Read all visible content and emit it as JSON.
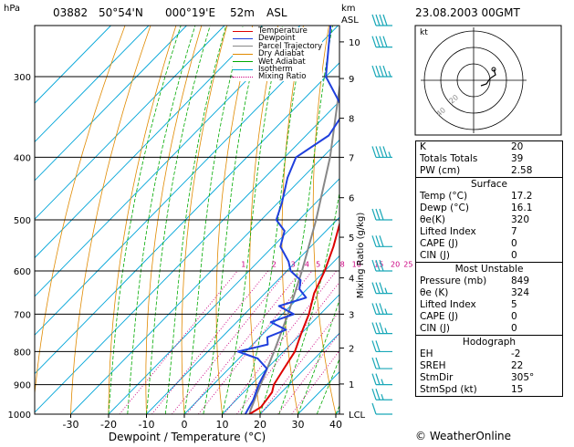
{
  "header": {
    "hpa": "hPa",
    "station": "03882",
    "lat": "50°54'N",
    "lon": "000°19'E",
    "elev": "52m",
    "asl": "ASL",
    "km": "km",
    "asl2": "ASL",
    "datetime": "23.08.2003 00GMT"
  },
  "legend": {
    "items": [
      {
        "label": "Temperature",
        "color": "#dd0000",
        "style": "solid"
      },
      {
        "label": "Dewpoint",
        "color": "#1f3fdd",
        "style": "solid"
      },
      {
        "label": "Parcel Trajectory",
        "color": "#888888",
        "style": "solid"
      },
      {
        "label": "Dry Adiabat",
        "color": "#e08a00",
        "style": "solid"
      },
      {
        "label": "Wet Adiabat",
        "color": "#00aa00",
        "style": "solid"
      },
      {
        "label": "Isotherm",
        "color": "#00a5d8",
        "style": "solid"
      },
      {
        "label": "Mixing Ratio",
        "color": "#cc0080",
        "style": "dotted"
      }
    ]
  },
  "chart_data": {
    "type": "skew-t",
    "xlabel": "Dewpoint / Temperature (°C)",
    "ylabel_left": "hPa",
    "ylabel_right": "Mixing Ratio (g/kg)",
    "x_ticks": [
      -30,
      -20,
      -10,
      0,
      10,
      20,
      30,
      40
    ],
    "pressure_ticks": [
      300,
      400,
      500,
      600,
      700,
      800,
      900,
      1000
    ],
    "km_ticks": [
      "10",
      "9",
      "8",
      "7",
      "6",
      "5",
      "4",
      "3",
      "2",
      "1",
      "LCL"
    ],
    "mixing_ratio_labels": [
      "1",
      "2",
      "3",
      "4",
      "5",
      "8",
      "10",
      "15",
      "20",
      "25"
    ],
    "temperature": [
      {
        "p": 1000,
        "t": 17.2
      },
      {
        "p": 975,
        "t": 18.4
      },
      {
        "p": 950,
        "t": 18.0
      },
      {
        "p": 925,
        "t": 17.5
      },
      {
        "p": 900,
        "t": 16.0
      },
      {
        "p": 850,
        "t": 14.5
      },
      {
        "p": 800,
        "t": 13.0
      },
      {
        "p": 750,
        "t": 10.0
      },
      {
        "p": 700,
        "t": 7.0
      },
      {
        "p": 650,
        "t": 3.0
      },
      {
        "p": 600,
        "t": 0.0
      },
      {
        "p": 550,
        "t": -4.0
      },
      {
        "p": 500,
        "t": -9.0
      },
      {
        "p": 450,
        "t": -14.0
      },
      {
        "p": 400,
        "t": -20.5
      },
      {
        "p": 350,
        "t": -28.0
      },
      {
        "p": 300,
        "t": -37.0
      },
      {
        "p": 250,
        "t": -48.0
      }
    ],
    "dewpoint": [
      {
        "p": 1000,
        "t": 16.1
      },
      {
        "p": 950,
        "t": 14.5
      },
      {
        "p": 900,
        "t": 12.0
      },
      {
        "p": 850,
        "t": 10.0
      },
      {
        "p": 820,
        "t": 5.0
      },
      {
        "p": 800,
        "t": -2.0
      },
      {
        "p": 780,
        "t": 4.0
      },
      {
        "p": 760,
        "t": 2.0
      },
      {
        "p": 740,
        "t": 5.0
      },
      {
        "p": 720,
        "t": -1.0
      },
      {
        "p": 700,
        "t": 3.0
      },
      {
        "p": 680,
        "t": -3.0
      },
      {
        "p": 660,
        "t": 2.0
      },
      {
        "p": 640,
        "t": -2.0
      },
      {
        "p": 620,
        "t": -4.0
      },
      {
        "p": 600,
        "t": -9.0
      },
      {
        "p": 580,
        "t": -12.0
      },
      {
        "p": 550,
        "t": -18.0
      },
      {
        "p": 520,
        "t": -21.0
      },
      {
        "p": 500,
        "t": -26.0
      },
      {
        "p": 470,
        "t": -29.0
      },
      {
        "p": 430,
        "t": -34.0
      },
      {
        "p": 400,
        "t": -37.0
      },
      {
        "p": 370,
        "t": -34.0
      },
      {
        "p": 340,
        "t": -36.0
      },
      {
        "p": 300,
        "t": -50.0
      },
      {
        "p": 250,
        "t": -62.0
      }
    ],
    "parcel": [
      {
        "p": 1000,
        "t": 17.2
      },
      {
        "p": 985,
        "t": 16.4
      },
      {
        "p": 900,
        "t": 12.5
      },
      {
        "p": 800,
        "t": 7.5
      },
      {
        "p": 700,
        "t": 1.5
      },
      {
        "p": 600,
        "t": -6.0
      },
      {
        "p": 500,
        "t": -15.5
      },
      {
        "p": 400,
        "t": -28.0
      },
      {
        "p": 300,
        "t": -46.0
      },
      {
        "p": 250,
        "t": -57.0
      }
    ],
    "wind_barbs": [
      {
        "p": 1000,
        "dir": 305,
        "spd": 10
      },
      {
        "p": 950,
        "dir": 300,
        "spd": 15
      },
      {
        "p": 900,
        "dir": 295,
        "spd": 15
      },
      {
        "p": 850,
        "dir": 290,
        "spd": 20
      },
      {
        "p": 800,
        "dir": 285,
        "spd": 20
      },
      {
        "p": 750,
        "dir": 280,
        "spd": 25
      },
      {
        "p": 700,
        "dir": 280,
        "spd": 25
      },
      {
        "p": 650,
        "dir": 275,
        "spd": 25
      },
      {
        "p": 600,
        "dir": 275,
        "spd": 30
      },
      {
        "p": 550,
        "dir": 275,
        "spd": 30
      },
      {
        "p": 500,
        "dir": 270,
        "spd": 30
      },
      {
        "p": 400,
        "dir": 270,
        "spd": 35
      },
      {
        "p": 300,
        "dir": 270,
        "spd": 35
      },
      {
        "p": 270,
        "dir": 265,
        "spd": 40
      },
      {
        "p": 250,
        "dir": 265,
        "spd": 40
      }
    ]
  },
  "hodograph": {
    "unit_label": "kt",
    "ring_labels": [
      "20",
      "40"
    ]
  },
  "indices": {
    "top": [
      {
        "k": "K",
        "v": "20"
      },
      {
        "k": "Totals Totals",
        "v": "39"
      },
      {
        "k": "PW (cm)",
        "v": "2.58"
      }
    ],
    "surface_title": "Surface",
    "surface": [
      {
        "k": "Temp (°C)",
        "v": "17.2"
      },
      {
        "k": "Dewp (°C)",
        "v": "16.1"
      },
      {
        "k": "θe(K)",
        "v": "320"
      },
      {
        "k": "Lifted Index",
        "v": "7"
      },
      {
        "k": "CAPE (J)",
        "v": "0"
      },
      {
        "k": "CIN (J)",
        "v": "0"
      }
    ],
    "mu_title": "Most Unstable",
    "mu": [
      {
        "k": "Pressure (mb)",
        "v": "849"
      },
      {
        "k": "θe (K)",
        "v": "324"
      },
      {
        "k": "Lifted Index",
        "v": "5"
      },
      {
        "k": "CAPE (J)",
        "v": "0"
      },
      {
        "k": "CIN (J)",
        "v": "0"
      }
    ],
    "hodo_title": "Hodograph",
    "hodo": [
      {
        "k": "EH",
        "v": "-2"
      },
      {
        "k": "SREH",
        "v": "22"
      },
      {
        "k": "StmDir",
        "v": "305°"
      },
      {
        "k": "StmSpd (kt)",
        "v": "15"
      }
    ]
  },
  "footer": {
    "copyright": "© WeatherOnline"
  },
  "colors": {
    "temperature": "#dd0000",
    "dewpoint": "#1f3fdd",
    "parcel": "#888888",
    "dry": "#e08a00",
    "wet": "#00aa00",
    "iso": "#00a5d8",
    "mix": "#cc0080",
    "barb": "#1aa8b8"
  }
}
